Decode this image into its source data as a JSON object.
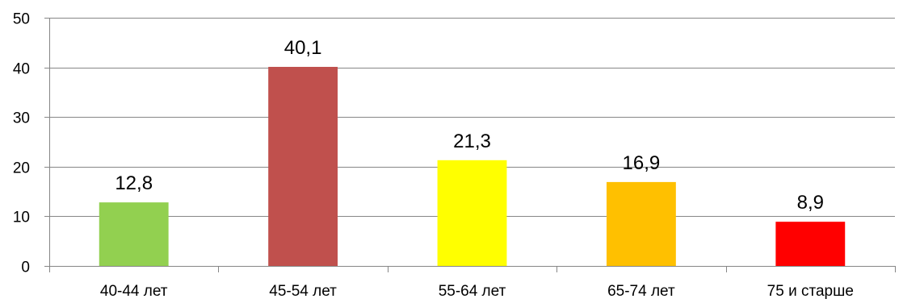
{
  "chart_data": {
    "type": "bar",
    "title": "",
    "xlabel": "",
    "ylabel": "",
    "ylim": [
      0,
      50
    ],
    "yticks": [
      0,
      10,
      20,
      30,
      40,
      50
    ],
    "grid": true,
    "legend": "none",
    "categories": [
      "40-44 лет",
      "45-54 лет",
      "55-64 лет",
      "65-74 лет",
      "75 и старше"
    ],
    "values": [
      12.8,
      40.1,
      21.3,
      16.9,
      8.9
    ],
    "value_labels": [
      "12,8",
      "40,1",
      "21,3",
      "16,9",
      "8,9"
    ],
    "bar_colors": [
      "#92d050",
      "#c0504d",
      "#ffff00",
      "#ffc000",
      "#ff0000"
    ],
    "gridline_color": "#868686",
    "axis_color": "#868686"
  }
}
